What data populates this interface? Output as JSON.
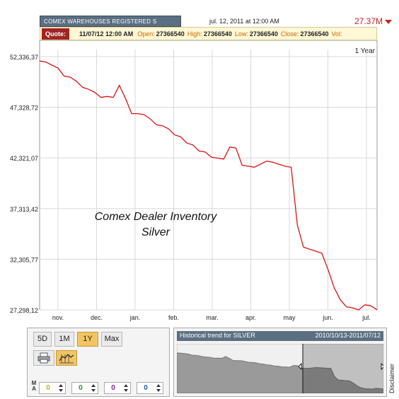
{
  "header": {
    "series_tab": "COMEX WAREHOUSES REGISTERED S",
    "date": "jul. 12, 2011 at 12:00 AM",
    "price": "27.37M"
  },
  "quote": {
    "badge": "Quote:",
    "date": "11/07/12 12:00 AM",
    "open_label": "Open:",
    "open_value": "27366540",
    "high_label": "High:",
    "high_value": "27366540",
    "low_label": "Low:",
    "low_value": "27366540",
    "close_label": "Close:",
    "close_value": "27366540",
    "vol_label": "Vol:"
  },
  "range_label": "1 Year",
  "overlay_title": [
    "Comex Dealer Inventory",
    "Silver"
  ],
  "controls": {
    "periods": [
      "5D",
      "1M",
      "1Y",
      "Max"
    ],
    "active_period": "1Y",
    "ma_label": "M\nA",
    "ma_values": [
      "0",
      "0",
      "0",
      "0"
    ],
    "ma_colors": [
      "#c8b400",
      "#1c9a1c",
      "#8a1c9a",
      "#1c5acc"
    ]
  },
  "navigator": {
    "title": "Historical trend for SILVER",
    "range": "2010/10/13-2011/07/12"
  },
  "disclaimer": "Disclaimer",
  "colors": {
    "line": "#dd1111",
    "header_bg": "#5b6f82",
    "quote_bg": "#fff7d6",
    "accent": "#f2c562"
  },
  "chart_data": {
    "type": "line",
    "title": "Comex Dealer Inventory Silver",
    "xlabel": "",
    "ylabel": "",
    "x_ticks": [
      "nov.",
      "dec.",
      "jan.",
      "feb.",
      "mar.",
      "apr.",
      "may",
      "jun.",
      "jul."
    ],
    "y_ticks": [
      "52,336,37",
      "47,328,72",
      "42,321,07",
      "37,313,42",
      "32,305,77",
      "27,298,12"
    ],
    "ylim": [
      27298120,
      52336370
    ],
    "grid": true,
    "series": [
      {
        "values": [
          51900000,
          51800000,
          51500000,
          51200000,
          50400000,
          50300000,
          49900000,
          49300000,
          49100000,
          48800000,
          48300000,
          48400000,
          48300000,
          49500000,
          48200000,
          46700000,
          46700000,
          46600000,
          46200000,
          45600000,
          45500000,
          45200000,
          44600000,
          44400000,
          43800000,
          43600000,
          43000000,
          42900000,
          42400000,
          42300000,
          42200000,
          43400000,
          43300000,
          41600000,
          41500000,
          41400000,
          41700000,
          42000000,
          41900000,
          41700000,
          41500000,
          41400000,
          35700000,
          33500000,
          33300000,
          33100000,
          32900000,
          31300000,
          29500000,
          28300000,
          27600000,
          27500000,
          27300000,
          27800000,
          27700000,
          27300000
        ]
      }
    ]
  }
}
